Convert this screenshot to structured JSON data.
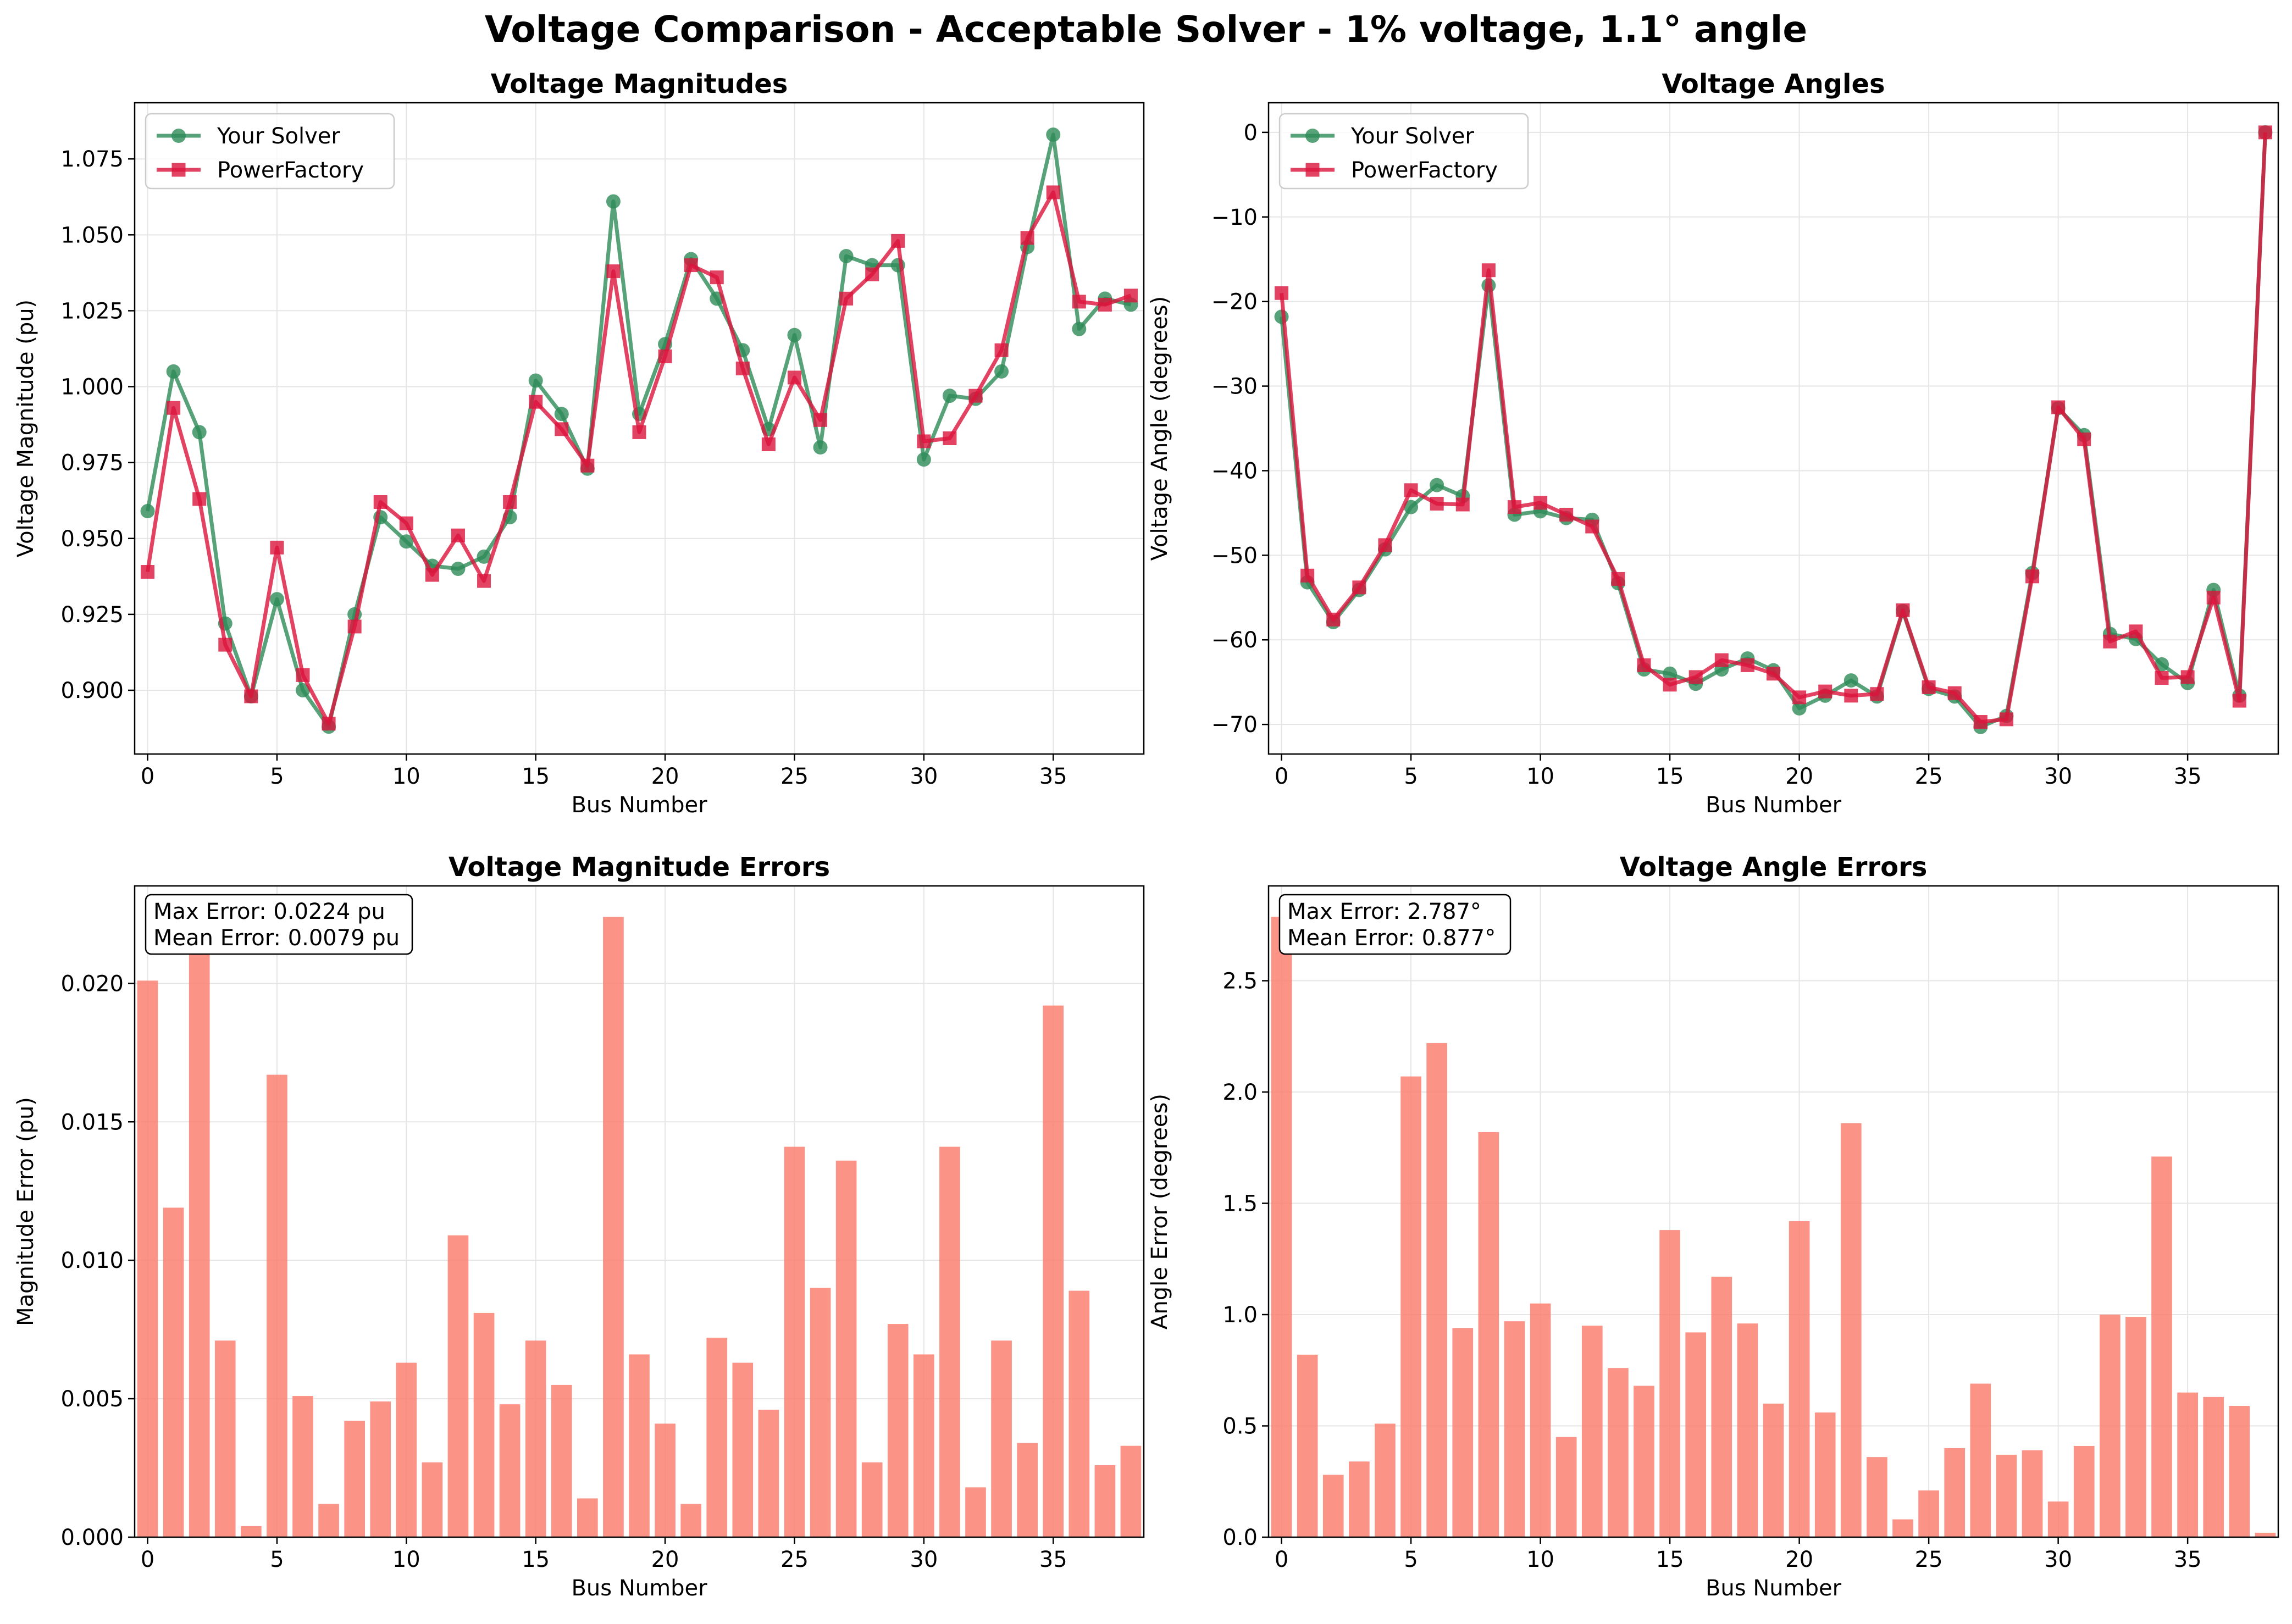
{
  "figure": {
    "suptitle": "Voltage Comparison - Acceptable Solver - 1% voltage, 1.1° angle"
  },
  "colors": {
    "solver": "#2e8b57",
    "powerfactory": "#dc143c",
    "error_bar": "#fa8072",
    "grid": "#e5e5e5"
  },
  "chart_data": [
    {
      "id": "magnitudes",
      "type": "line",
      "title": "Voltage Magnitudes",
      "xlabel": "Bus Number",
      "ylabel": "Voltage Magnitude (pu)",
      "xlim": [
        -0.5,
        38.5
      ],
      "ylim": [
        0.879,
        1.0935
      ],
      "xticks": [
        0,
        5,
        10,
        15,
        20,
        25,
        30,
        35
      ],
      "yticks": [
        0.9,
        0.925,
        0.95,
        0.975,
        1.0,
        1.025,
        1.05,
        1.075
      ],
      "ytick_labels": [
        "0.900",
        "0.925",
        "0.950",
        "0.975",
        "1.000",
        "1.025",
        "1.050",
        "1.075"
      ],
      "grid": true,
      "legend_position": "upper left",
      "x": [
        0,
        1,
        2,
        3,
        4,
        5,
        6,
        7,
        8,
        9,
        10,
        11,
        12,
        13,
        14,
        15,
        16,
        17,
        18,
        19,
        20,
        21,
        22,
        23,
        24,
        25,
        26,
        27,
        28,
        29,
        30,
        31,
        32,
        33,
        34,
        35,
        36,
        37,
        38
      ],
      "series": [
        {
          "name": "Your Solver",
          "marker": "circle",
          "color": "#2e8b57",
          "values": [
            0.959,
            1.005,
            0.985,
            0.922,
            0.898,
            0.93,
            0.9,
            0.888,
            0.925,
            0.957,
            0.949,
            0.941,
            0.94,
            0.944,
            0.957,
            1.002,
            0.991,
            0.973,
            1.061,
            0.991,
            1.014,
            1.042,
            1.029,
            1.012,
            0.986,
            1.017,
            0.98,
            1.043,
            1.04,
            1.04,
            0.976,
            0.997,
            0.996,
            1.005,
            1.046,
            1.083,
            1.019,
            1.029,
            1.027
          ]
        },
        {
          "name": "PowerFactory",
          "marker": "square",
          "color": "#dc143c",
          "values": [
            0.939,
            0.993,
            0.963,
            0.915,
            0.898,
            0.947,
            0.905,
            0.889,
            0.921,
            0.962,
            0.955,
            0.938,
            0.951,
            0.936,
            0.962,
            0.995,
            0.986,
            0.974,
            1.038,
            0.985,
            1.01,
            1.04,
            1.036,
            1.006,
            0.981,
            1.003,
            0.989,
            1.029,
            1.037,
            1.048,
            0.982,
            0.983,
            0.997,
            1.012,
            1.049,
            1.064,
            1.028,
            1.027,
            1.03
          ]
        }
      ]
    },
    {
      "id": "angles",
      "type": "line",
      "title": "Voltage Angles",
      "xlabel": "Bus Number",
      "ylabel": "Voltage Angle (degrees)",
      "xlim": [
        -0.5,
        38.5
      ],
      "ylim": [
        -73.5,
        3.5
      ],
      "xticks": [
        0,
        5,
        10,
        15,
        20,
        25,
        30,
        35
      ],
      "yticks": [
        -70,
        -60,
        -50,
        -40,
        -30,
        -20,
        -10,
        0
      ],
      "ytick_labels": [
        "−70",
        "−60",
        "−50",
        "−40",
        "−30",
        "−20",
        "−10",
        "0"
      ],
      "grid": true,
      "legend_position": "upper left",
      "x": [
        0,
        1,
        2,
        3,
        4,
        5,
        6,
        7,
        8,
        9,
        10,
        11,
        12,
        13,
        14,
        15,
        16,
        17,
        18,
        19,
        20,
        21,
        22,
        23,
        24,
        25,
        26,
        27,
        28,
        29,
        30,
        31,
        32,
        33,
        34,
        35,
        36,
        37,
        38
      ],
      "series": [
        {
          "name": "Your Solver",
          "marker": "circle",
          "color": "#2e8b57",
          "values": [
            -21.8,
            -53.2,
            -57.9,
            -54.1,
            -49.3,
            -44.3,
            -41.7,
            -43.0,
            -18.1,
            -45.2,
            -44.8,
            -45.6,
            -45.8,
            -53.3,
            -63.5,
            -64.0,
            -65.2,
            -63.5,
            -62.2,
            -63.6,
            -68.1,
            -66.6,
            -64.8,
            -66.7,
            -56.6,
            -65.8,
            -66.7,
            -70.3,
            -69.0,
            -52.1,
            -32.6,
            -35.8,
            -59.3,
            -59.9,
            -62.9,
            -65.1,
            -54.1,
            -66.6,
            0.0
          ]
        },
        {
          "name": "PowerFactory",
          "marker": "square",
          "color": "#dc143c",
          "values": [
            -19.0,
            -52.4,
            -57.6,
            -53.8,
            -48.8,
            -42.3,
            -43.9,
            -44.0,
            -16.3,
            -44.3,
            -43.8,
            -45.2,
            -46.6,
            -52.8,
            -63.0,
            -65.3,
            -64.4,
            -62.4,
            -63.0,
            -64.0,
            -66.8,
            -66.1,
            -66.6,
            -66.4,
            -56.5,
            -65.6,
            -66.3,
            -69.7,
            -69.4,
            -52.5,
            -32.5,
            -36.3,
            -60.2,
            -59.0,
            -64.5,
            -64.4,
            -55.0,
            -67.2,
            0.0
          ]
        }
      ]
    },
    {
      "id": "magnitude_errors",
      "type": "bar",
      "title": "Voltage Magnitude Errors",
      "xlabel": "Bus Number",
      "ylabel": "Magnitude Error (pu)",
      "xlim": [
        -0.5,
        38.5
      ],
      "ylim": [
        0,
        0.02352
      ],
      "xticks": [
        0,
        5,
        10,
        15,
        20,
        25,
        30,
        35
      ],
      "yticks": [
        0.0,
        0.005,
        0.01,
        0.015,
        0.02
      ],
      "ytick_labels": [
        "0.000",
        "0.005",
        "0.010",
        "0.015",
        "0.020"
      ],
      "grid": true,
      "x": [
        0,
        1,
        2,
        3,
        4,
        5,
        6,
        7,
        8,
        9,
        10,
        11,
        12,
        13,
        14,
        15,
        16,
        17,
        18,
        19,
        20,
        21,
        22,
        23,
        24,
        25,
        26,
        27,
        28,
        29,
        30,
        31,
        32,
        33,
        34,
        35,
        36,
        37,
        38
      ],
      "values": [
        0.0201,
        0.0119,
        0.0214,
        0.0071,
        0.0004,
        0.0167,
        0.0051,
        0.0012,
        0.0042,
        0.0049,
        0.0063,
        0.0027,
        0.0109,
        0.0081,
        0.0048,
        0.0071,
        0.0055,
        0.0014,
        0.0224,
        0.0066,
        0.0041,
        0.0012,
        0.0072,
        0.0063,
        0.0046,
        0.0141,
        0.009,
        0.0136,
        0.0027,
        0.0077,
        0.0066,
        0.0141,
        0.0018,
        0.0071,
        0.0034,
        0.0192,
        0.0089,
        0.0026,
        0.0033
      ],
      "annotations": [
        "Max Error: 0.0224 pu",
        "Mean Error: 0.0079 pu"
      ]
    },
    {
      "id": "angle_errors",
      "type": "bar",
      "title": "Voltage Angle Errors",
      "xlabel": "Bus Number",
      "ylabel": "Angle Error (degrees)",
      "xlim": [
        -0.5,
        38.5
      ],
      "ylim": [
        0,
        2.926
      ],
      "xticks": [
        0,
        5,
        10,
        15,
        20,
        25,
        30,
        35
      ],
      "yticks": [
        0.0,
        0.5,
        1.0,
        1.5,
        2.0,
        2.5
      ],
      "ytick_labels": [
        "0.0",
        "0.5",
        "1.0",
        "1.5",
        "2.0",
        "2.5"
      ],
      "grid": true,
      "x": [
        0,
        1,
        2,
        3,
        4,
        5,
        6,
        7,
        8,
        9,
        10,
        11,
        12,
        13,
        14,
        15,
        16,
        17,
        18,
        19,
        20,
        21,
        22,
        23,
        24,
        25,
        26,
        27,
        28,
        29,
        30,
        31,
        32,
        33,
        34,
        35,
        36,
        37,
        38
      ],
      "values": [
        2.787,
        0.82,
        0.28,
        0.34,
        0.51,
        2.07,
        2.22,
        0.94,
        1.82,
        0.97,
        1.05,
        0.45,
        0.95,
        0.76,
        0.68,
        1.38,
        0.92,
        1.17,
        0.96,
        0.6,
        1.42,
        0.56,
        1.86,
        0.36,
        0.08,
        0.21,
        0.4,
        0.69,
        0.37,
        0.39,
        0.16,
        0.41,
        1.0,
        0.99,
        1.71,
        0.65,
        0.63,
        0.59,
        0.02
      ],
      "annotations": [
        "Max Error: 2.787°",
        "Mean Error: 0.877°"
      ]
    }
  ]
}
